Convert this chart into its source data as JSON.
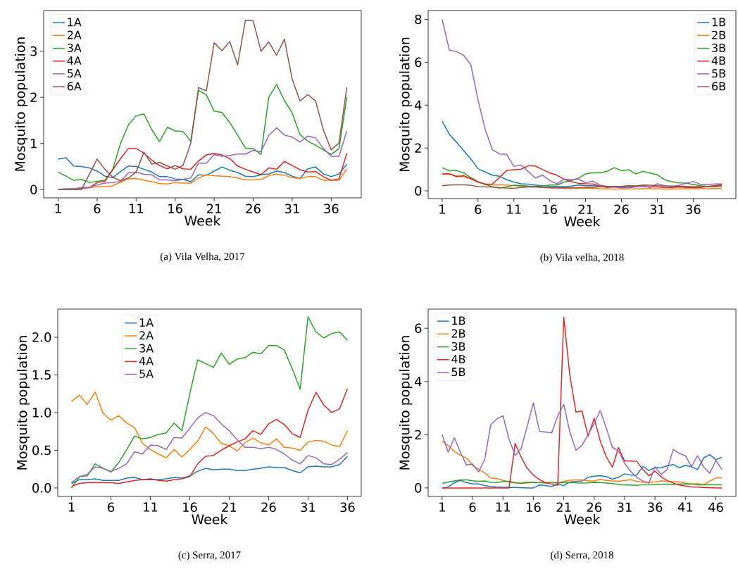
{
  "chart_data": [
    {
      "type": "line",
      "title": "(a) Vila Velha, 2017",
      "xlabel": "Week",
      "ylabel": "Mosquito population",
      "legend": "top left",
      "x": [
        1,
        2,
        3,
        4,
        5,
        6,
        7,
        8,
        9,
        10,
        11,
        12,
        13,
        14,
        15,
        16,
        17,
        18,
        19,
        20,
        21,
        22,
        23,
        24,
        25,
        26,
        27,
        28,
        29,
        30,
        31,
        32,
        33,
        34,
        35,
        36,
        37,
        38
      ],
      "xlim": [
        -0.85,
        39.85
      ],
      "xticks": [
        1,
        6,
        11,
        16,
        21,
        26,
        31,
        36
      ],
      "ylim": [
        -0.18,
        3.88
      ],
      "yticks": [
        0,
        1,
        2,
        3
      ],
      "series": [
        {
          "name": "1A",
          "color": "#1f77b4",
          "values": [
            0.66,
            0.69,
            0.51,
            0.5,
            0.47,
            0.4,
            0.29,
            0.26,
            0.39,
            0.51,
            0.5,
            0.44,
            0.38,
            0.28,
            0.28,
            0.23,
            0.22,
            0.17,
            0.32,
            0.31,
            0.4,
            0.49,
            0.42,
            0.37,
            0.29,
            0.28,
            0.32,
            0.34,
            0.4,
            0.37,
            0.29,
            0.24,
            0.45,
            0.49,
            0.34,
            0.28,
            0.34,
            0.55
          ]
        },
        {
          "name": "2A",
          "color": "#ff7f0e",
          "values": [
            null,
            null,
            null,
            0.03,
            0.04,
            0.06,
            0.06,
            0.08,
            0.16,
            0.23,
            0.24,
            0.2,
            0.17,
            0.13,
            0.12,
            0.15,
            0.14,
            0.14,
            0.25,
            0.32,
            0.3,
            0.29,
            0.28,
            0.25,
            0.21,
            0.21,
            0.22,
            0.3,
            0.34,
            0.31,
            0.26,
            0.24,
            0.28,
            0.28,
            0.2,
            0.2,
            0.2,
            0.45
          ]
        },
        {
          "name": "3A",
          "color": "#2ca02c",
          "values": [
            0.38,
            0.29,
            0.2,
            0.22,
            0.15,
            0.18,
            0.2,
            0.44,
            1.0,
            1.4,
            1.6,
            1.64,
            1.3,
            1.04,
            1.35,
            1.27,
            1.26,
            1.05,
            2.15,
            2.05,
            1.7,
            1.67,
            1.45,
            1.18,
            0.9,
            0.89,
            0.76,
            2.0,
            2.28,
            1.93,
            1.66,
            1.19,
            1.05,
            0.96,
            0.86,
            0.76,
            0.89,
            2.0
          ]
        },
        {
          "name": "4A",
          "color": "#d62728",
          "values": [
            null,
            null,
            0.02,
            0.03,
            0.04,
            0.15,
            0.18,
            0.43,
            0.67,
            0.89,
            0.89,
            0.79,
            0.64,
            0.52,
            0.45,
            0.52,
            0.45,
            0.44,
            0.62,
            0.75,
            0.78,
            0.75,
            0.67,
            0.51,
            0.44,
            0.38,
            0.32,
            0.47,
            0.44,
            0.61,
            0.52,
            0.43,
            0.38,
            0.39,
            0.28,
            0.2,
            0.23,
            0.79
          ]
        },
        {
          "name": "5A",
          "color": "#9467bd",
          "values": [
            0,
            0.02,
            0.02,
            0.04,
            0.05,
            0.1,
            0.14,
            0.15,
            0.18,
            0.36,
            0.38,
            0.33,
            0.32,
            0.21,
            0.21,
            0.19,
            0.22,
            0.25,
            0.57,
            0.57,
            0.76,
            0.72,
            0.74,
            0.77,
            0.77,
            0.85,
            0.82,
            1.17,
            1.34,
            1.18,
            1.14,
            1.03,
            1.16,
            1.12,
            0.89,
            0.72,
            0.72,
            1.27
          ]
        },
        {
          "name": "6A",
          "color": "#8c564b",
          "values": [
            0,
            0,
            0,
            0,
            0.33,
            0.66,
            0.44,
            0.27,
            0.19,
            0.25,
            0.38,
            0.81,
            0.55,
            0.59,
            0.51,
            0.44,
            0.52,
            1.0,
            2.21,
            2.14,
            3.18,
            3.01,
            3.21,
            2.7,
            3.67,
            3.66,
            3.0,
            3.2,
            2.91,
            3.26,
            2.39,
            1.92,
            2.06,
            1.92,
            1.29,
            0.86,
            1.01,
            2.22
          ]
        }
      ]
    },
    {
      "type": "line",
      "title": "(b) Vila velha, 2018",
      "xlabel": "Week",
      "ylabel": "Mosquito population",
      "legend": "top right",
      "x": [
        1,
        2,
        3,
        4,
        5,
        6,
        7,
        8,
        9,
        10,
        11,
        12,
        13,
        14,
        15,
        16,
        17,
        18,
        19,
        20,
        21,
        22,
        23,
        24,
        25,
        26,
        27,
        28,
        29,
        30,
        31,
        32,
        33,
        34,
        35,
        36,
        37,
        38,
        39,
        40
      ],
      "xlim": [
        -0.95,
        41.95
      ],
      "xticks": [
        1,
        6,
        11,
        16,
        21,
        26,
        31,
        36
      ],
      "ylim": [
        -0.36,
        8.41
      ],
      "yticks": [
        0,
        2,
        4,
        6,
        8
      ],
      "series": [
        {
          "name": "1B",
          "color": "#1f77b4",
          "values": [
            3.25,
            2.64,
            2.27,
            1.88,
            1.49,
            1.03,
            0.88,
            0.73,
            0.68,
            0.52,
            0.41,
            0.33,
            0.31,
            0.27,
            0.24,
            0.21,
            0.21,
            0.19,
            0.22,
            0.27,
            0.24,
            0.24,
            0.22,
            0.19,
            0.18,
            0.18,
            0.16,
            0.19,
            null,
            null,
            null,
            null,
            null,
            null,
            null,
            null,
            null,
            null,
            null,
            null
          ]
        },
        {
          "name": "2B",
          "color": "#ff7f0e",
          "values": [
            0.77,
            0.77,
            0.71,
            0.66,
            0.55,
            0.41,
            0.33,
            0.28,
            0.28,
            0.27,
            0.24,
            0.22,
            0.19,
            0.18,
            0.16,
            0.13,
            0.13,
            0.12,
            0.11,
            0.12,
            0.12,
            0.11,
            0.1,
            0.09,
            0.08,
            0.08,
            0.09,
            0.09,
            0.1,
            0.1,
            0.09,
            0.08,
            0.08,
            0.09,
            0.1,
            0.1,
            0.1,
            0.1,
            0.11,
            0.11
          ]
        },
        {
          "name": "3B",
          "color": "#2ca02c",
          "values": [
            1.08,
            0.94,
            0.95,
            0.84,
            0.62,
            0.43,
            0.3,
            0.19,
            0.13,
            0.19,
            0.26,
            0.24,
            0.22,
            0.21,
            0.22,
            0.27,
            0.27,
            0.41,
            0.48,
            0.59,
            0.79,
            0.85,
            0.84,
            0.91,
            1.08,
            0.94,
            0.99,
            0.79,
            0.91,
            0.83,
            0.75,
            0.52,
            0.43,
            0.37,
            0.36,
            0.3,
            0.24,
            0.21,
            0.22,
            0.27
          ]
        },
        {
          "name": "4B",
          "color": "#d62728",
          "values": [
            0.79,
            0.8,
            0.66,
            0.71,
            0.57,
            0.41,
            0.3,
            0.32,
            0.62,
            0.95,
            0.99,
            1.01,
            1.17,
            1.16,
            0.99,
            0.84,
            0.73,
            0.54,
            0.43,
            0.35,
            0.33,
            0.32,
            0.22,
            0.16,
            0.19,
            0.21,
            0.24,
            0.22,
            0.2,
            0.19,
            0.18,
            0.16,
            0.15,
            0.18,
            0.16,
            0.15,
            0.16,
            0.2,
            0.24,
            0.28
          ]
        },
        {
          "name": "5B",
          "color": "#9467bd",
          "values": [
            8.0,
            6.56,
            6.5,
            6.32,
            5.88,
            4.24,
            2.87,
            1.92,
            1.72,
            1.7,
            1.14,
            1.21,
            0.9,
            0.6,
            0.73,
            0.48,
            0.33,
            0.55,
            0.52,
            0.55,
            0.37,
            0.46,
            0.27,
            0.21,
            0.18,
            0.13,
            0.15,
            0.19,
            0.24,
            0.15,
            0.33,
            0.24,
            0.19,
            0.26,
            0.35,
            0.44,
            0.3,
            0.3,
            0.32,
            0.32
          ]
        },
        {
          "name": "6B",
          "color": "#8c564b",
          "values": [
            0.24,
            0.27,
            0.28,
            0.28,
            0.26,
            0.2,
            0.18,
            0.18,
            0.15,
            0.13,
            0.12,
            0.16,
            0.18,
            0.19,
            0.16,
            0.15,
            0.14,
            0.14,
            0.15,
            0.15,
            0.16,
            0.16,
            0.19,
            0.21,
            0.21,
            0.21,
            0.22,
            0.23,
            0.27,
            0.26,
            0.24,
            0.23,
            0.22,
            0.22,
            0.21,
            0.2,
            0.2,
            0.19,
            0.19,
            0.19
          ]
        }
      ]
    },
    {
      "type": "line",
      "title": "(c) Serra, 2017",
      "xlabel": "Week",
      "ylabel": "Mosquito population",
      "legend": "top",
      "x": [
        1,
        2,
        3,
        4,
        5,
        6,
        7,
        8,
        9,
        10,
        11,
        12,
        13,
        14,
        15,
        16,
        17,
        18,
        19,
        20,
        21,
        22,
        23,
        24,
        25,
        26,
        27,
        28,
        29,
        30,
        31,
        32,
        33,
        34,
        35,
        36
      ],
      "xlim": [
        -0.75,
        37.75
      ],
      "xticks": [
        1,
        6,
        11,
        16,
        21,
        26,
        31,
        36
      ],
      "ylim": [
        -0.113,
        2.373
      ],
      "yticks": [
        {
          "value": 0,
          "label": "0.0"
        },
        {
          "value": 0.5,
          "label": "0.5"
        },
        {
          "value": 1,
          "label": "1.0"
        },
        {
          "value": 1.5,
          "label": "1.5"
        },
        {
          "value": 2,
          "label": "2.0"
        }
      ],
      "series": [
        {
          "name": "1A",
          "color": "#1f77b4",
          "values": [
            0.06,
            0.11,
            0.11,
            0.12,
            0.1,
            0.1,
            0.1,
            0.13,
            0.14,
            0.11,
            0.11,
            0.11,
            0.12,
            0.14,
            0.13,
            0.16,
            0.22,
            0.26,
            0.24,
            0.25,
            0.25,
            0.23,
            0.23,
            0.25,
            0.26,
            0.28,
            0.27,
            0.27,
            0.23,
            0.2,
            0.28,
            0.29,
            0.28,
            0.28,
            0.31,
            0.42
          ]
        },
        {
          "name": "2A",
          "color": "#ff7f0e",
          "values": [
            1.15,
            1.23,
            1.11,
            1.27,
            0.99,
            0.9,
            0.96,
            0.86,
            0.8,
            0.59,
            0.51,
            0.45,
            0.4,
            0.51,
            0.41,
            0.51,
            0.62,
            0.81,
            0.72,
            0.59,
            0.56,
            0.49,
            0.6,
            0.66,
            0.6,
            0.57,
            0.65,
            0.54,
            0.53,
            0.5,
            0.61,
            0.63,
            0.62,
            0.57,
            0.55,
            0.76
          ]
        },
        {
          "name": "3A",
          "color": "#2ca02c",
          "values": [
            0.0,
            0.15,
            0.16,
            0.32,
            0.26,
            0.21,
            0.34,
            0.51,
            0.69,
            0.65,
            0.67,
            0.71,
            0.73,
            0.86,
            0.76,
            1.25,
            1.7,
            1.65,
            1.6,
            1.79,
            1.64,
            1.71,
            1.73,
            1.8,
            1.78,
            1.89,
            1.89,
            1.83,
            1.58,
            1.31,
            2.27,
            2.07,
            1.99,
            2.05,
            2.07,
            1.96
          ]
        },
        {
          "name": "4A",
          "color": "#d62728",
          "values": [
            0.02,
            0.06,
            0.07,
            0.07,
            0.07,
            0.07,
            0.06,
            0.08,
            0.1,
            0.11,
            0.12,
            0.1,
            0.09,
            0.11,
            0.12,
            0.15,
            0.32,
            0.42,
            0.43,
            0.5,
            0.56,
            0.61,
            0.65,
            0.76,
            0.71,
            0.85,
            0.91,
            0.84,
            0.72,
            0.67,
            1.03,
            1.27,
            1.1,
            1.0,
            1.05,
            1.32
          ]
        },
        {
          "name": "5A",
          "color": "#9467bd",
          "values": [
            0.07,
            0.15,
            0.18,
            0.28,
            0.26,
            0.22,
            0.26,
            0.32,
            0.48,
            0.45,
            0.57,
            0.56,
            0.51,
            0.67,
            0.66,
            0.79,
            0.93,
            1.0,
            0.96,
            0.85,
            0.76,
            0.64,
            0.54,
            0.54,
            0.52,
            0.54,
            0.51,
            0.45,
            0.37,
            0.32,
            0.43,
            0.4,
            0.32,
            0.31,
            0.38,
            0.47
          ]
        }
      ]
    },
    {
      "type": "line",
      "title": "(d) Serra, 2018",
      "xlabel": "Week",
      "ylabel": "Mosquito population",
      "legend": "top left",
      "x": [
        1,
        2,
        3,
        4,
        5,
        6,
        7,
        8,
        9,
        10,
        11,
        12,
        13,
        14,
        15,
        16,
        17,
        18,
        19,
        20,
        21,
        22,
        23,
        24,
        25,
        26,
        27,
        28,
        29,
        30,
        31,
        32,
        33,
        34,
        35,
        36,
        37,
        38,
        39,
        40,
        41,
        42,
        43,
        44,
        45,
        46,
        47
      ],
      "xlim": [
        -1.3,
        49.3
      ],
      "xticks": [
        1,
        6,
        11,
        16,
        21,
        26,
        31,
        36,
        41,
        46
      ],
      "ylim": [
        -0.32,
        6.72
      ],
      "yticks": [
        0,
        2,
        4,
        6
      ],
      "series": [
        {
          "name": "1B",
          "color": "#1f77b4",
          "values": [
            0,
            0.04,
            0.19,
            0.29,
            0.2,
            0.15,
            0.15,
            0.09,
            0.05,
            0.03,
            0.03,
            0.02,
            0.02,
            0.01,
            0,
            0,
            0.11,
            0.09,
            0.05,
            0.15,
            0.09,
            0.22,
            0.24,
            0.26,
            0.4,
            0.44,
            0.46,
            0.42,
            0.33,
            0.4,
            0.53,
            0.48,
            0.48,
            0.81,
            0.65,
            0.77,
            0.75,
            0.83,
            0.88,
            0.76,
            0.85,
            0.79,
            0.69,
            1.13,
            1.25,
            1.06,
            1.15
          ]
        },
        {
          "name": "2B",
          "color": "#ff7f0e",
          "values": [
            1.76,
            1.59,
            1.37,
            1.23,
            1.12,
            0.85,
            0.7,
            0.56,
            0.37,
            0.35,
            0.29,
            0.22,
            0.18,
            0.19,
            0.22,
            0.2,
            0.2,
            0.21,
            0.2,
            0.19,
            0.24,
            0.29,
            0.3,
            0.3,
            0.26,
            0.26,
            0.33,
            0.28,
            0.26,
            0.25,
            0.28,
            0.31,
            0.25,
            0.21,
            0.21,
            0.23,
            0.26,
            0.24,
            0.23,
            0.22,
            0.18,
            0.15,
            0.16,
            0.12,
            0.26,
            0.37,
            0.38
          ]
        },
        {
          "name": "3B",
          "color": "#2ca02c",
          "values": [
            0.17,
            0.22,
            0.26,
            0.3,
            0.3,
            0.27,
            0.25,
            0.26,
            0.21,
            0.2,
            0.24,
            0.25,
            0.2,
            0.17,
            0.19,
            0.21,
            0.2,
            0.19,
            0.2,
            0.19,
            0.2,
            0.21,
            0.19,
            0.18,
            0.19,
            0.21,
            0.2,
            0.18,
            0.16,
            0.13,
            0.11,
            0.11,
            0.1,
            0.12,
            0.12,
            0.13,
            0.13,
            0.14,
            0.13,
            0.14,
            0.15,
            0.14,
            0.12,
            0.12,
            0.12,
            0.12,
            0.12
          ]
        },
        {
          "name": "4B",
          "color": "#d62728",
          "values": [
            0,
            0,
            0,
            0,
            0,
            0,
            0,
            0,
            0,
            0,
            0,
            0,
            1.67,
            1.15,
            0.73,
            0.48,
            0.31,
            0.19,
            0.14,
            0.1,
            6.41,
            4.23,
            2.85,
            2.89,
            1.94,
            2.62,
            1.76,
            1.16,
            0.78,
            1.52,
            1.01,
            1.01,
            1.0,
            0.69,
            0.46,
            0.63,
            0.42,
            0.28,
            0.18,
            0.11,
            0.07,
            0.04,
            0.03,
            0.02,
            0.01,
            0,
            0
          ]
        },
        {
          "name": "5B",
          "color": "#9467bd",
          "values": [
            2.0,
            1.34,
            1.89,
            1.34,
            0.86,
            0.9,
            0.6,
            1.07,
            2.38,
            2.6,
            2.71,
            1.83,
            1.22,
            1.48,
            2.33,
            3.2,
            2.13,
            2.1,
            2.07,
            2.7,
            3.14,
            2.1,
            1.41,
            1.6,
            2.0,
            2.42,
            2.91,
            2.25,
            1.52,
            1.39,
            0.93,
            0.62,
            0.4,
            0.26,
            0.18,
            0.79,
            0.51,
            0.69,
            1.45,
            1.3,
            1.21,
            0.81,
            1.21,
            0.79,
            0.55,
            1.03,
            0.69
          ]
        }
      ]
    }
  ]
}
